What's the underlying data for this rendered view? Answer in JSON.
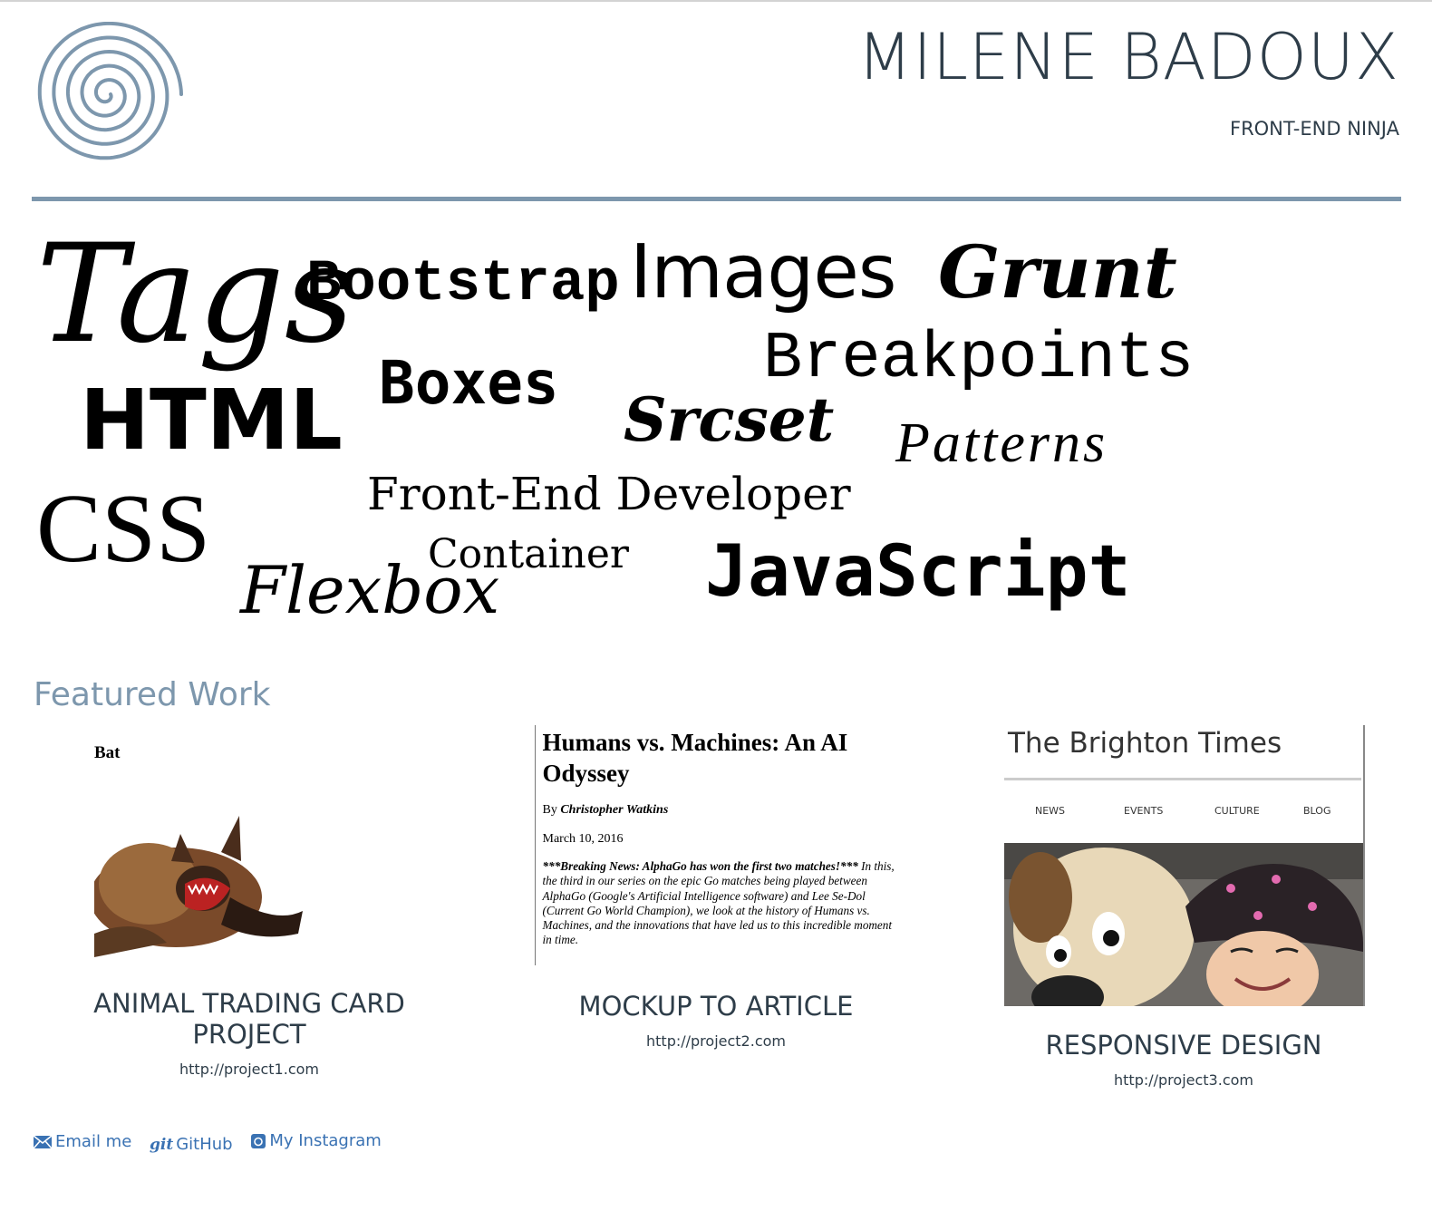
{
  "header": {
    "name": "MILENE BADOUX",
    "tagline": "FRONT-END NINJA",
    "colors": {
      "text": "#2e3d49",
      "accent": "#7d97ad",
      "link": "#3a72b3"
    }
  },
  "word_cloud": {
    "tags": "Tags",
    "bootstrap": "Bootstrap",
    "images": "Images",
    "grunt": "Grunt",
    "breakpoints": "Breakpoints",
    "boxes": "Boxes",
    "html": "HTML",
    "srcset": "Srcset",
    "patterns": "Patterns",
    "front_end": "Front-End Developer",
    "css": "CSS",
    "container": "Container",
    "flexbox": "Flexbox",
    "javascript": "JavaScript"
  },
  "featured": {
    "title": "Featured Work",
    "projects": [
      {
        "title_line1": "ANIMAL TRADING CARD",
        "title_line2": "PROJECT",
        "url": "http://project1.com",
        "thumb": {
          "label": "Bat"
        }
      },
      {
        "title": "MOCKUP TO ARTICLE",
        "url": "http://project2.com",
        "thumb": {
          "headline": "Humans vs. Machines: An AI Odyssey",
          "by": "By",
          "author": "Christopher Watkins",
          "date": "March 10, 2016",
          "lead": "***Breaking News: AlphaGo has won the first two matches!***",
          "body": " In this, the third in our series on the epic Go matches being played between AlphaGo (Google's Artificial Intelligence software) and Lee Se-Dol (Current Go World Champion), we look at the history of Humans vs. Machines, and the innovations that have led us to this incredible moment in time."
        }
      },
      {
        "title": "RESPONSIVE DESIGN",
        "url": "http://project3.com",
        "thumb": {
          "masthead": "The Brighton Times",
          "nav": [
            "NEWS",
            "EVENTS",
            "CULTURE",
            "BLOG"
          ]
        }
      }
    ]
  },
  "footer": {
    "email": "Email me",
    "github": "GitHub",
    "instagram": "My Instagram",
    "git_icon_text": "git"
  }
}
